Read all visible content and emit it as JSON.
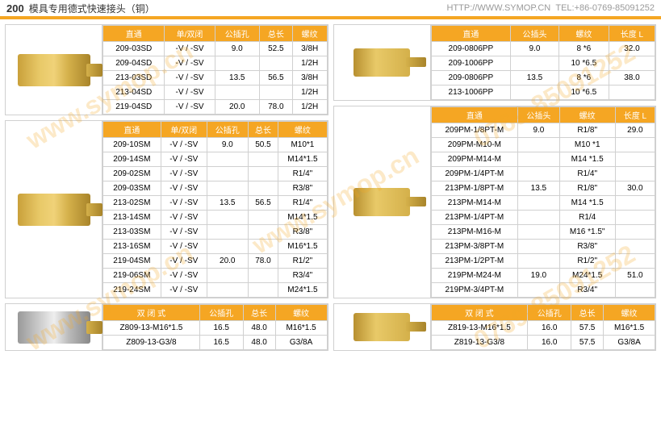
{
  "header": {
    "num": "200",
    "title": "模具专用德式快速接头（铜）",
    "url": "HTTP://WWW.SYMOP.CN",
    "tel": "TEL:+86-0769-85091252"
  },
  "watermark": "www.symop.cn\n0769-85091252",
  "t1": {
    "headers": [
      "直通",
      "单/双闭",
      "公插孔",
      "总长",
      "螺纹"
    ],
    "rows": [
      [
        "209-03SD",
        "-V / -SV",
        "9.0",
        "52.5",
        "3/8H"
      ],
      [
        "209-04SD",
        "-V / -SV",
        "",
        "",
        "1/2H"
      ],
      [
        "213-03SD",
        "-V / -SV",
        "13.5",
        "56.5",
        "3/8H"
      ],
      [
        "213-04SD",
        "-V / -SV",
        "",
        "",
        "1/2H"
      ],
      [
        "219-04SD",
        "-V / -SV",
        "20.0",
        "78.0",
        "1/2H"
      ]
    ]
  },
  "t2": {
    "headers": [
      "直通",
      "单/双闭",
      "公插孔",
      "总长",
      "螺纹"
    ],
    "rows": [
      [
        "209-10SM",
        "-V / -SV",
        "9.0",
        "50.5",
        "M10*1"
      ],
      [
        "209-14SM",
        "-V / -SV",
        "",
        "",
        "M14*1.5"
      ],
      [
        "209-02SM",
        "-V / -SV",
        "",
        "",
        "R1/4\""
      ],
      [
        "209-03SM",
        "-V / -SV",
        "",
        "",
        "R3/8\""
      ],
      [
        "213-02SM",
        "-V / -SV",
        "13.5",
        "56.5",
        "R1/4\""
      ],
      [
        "213-14SM",
        "-V / -SV",
        "",
        "",
        "M14*1.5"
      ],
      [
        "213-03SM",
        "-V / -SV",
        "",
        "",
        "R3/8\""
      ],
      [
        "213-16SM",
        "-V / -SV",
        "",
        "",
        "M16*1.5"
      ],
      [
        "219-04SM",
        "-V / -SV",
        "20.0",
        "78.0",
        "R1/2\""
      ],
      [
        "219-06SM",
        "-V / -SV",
        "",
        "",
        "R3/4\""
      ],
      [
        "219-24SM",
        "-V / -SV",
        "",
        "",
        "M24*1.5"
      ]
    ]
  },
  "t3": {
    "headers": [
      "双 闭 式",
      "公插孔",
      "总长",
      "螺纹"
    ],
    "rows": [
      [
        "Z809-13-M16*1.5",
        "16.5",
        "48.0",
        "M16*1.5"
      ],
      [
        "Z809-13-G3/8",
        "16.5",
        "48.0",
        "G3/8A"
      ]
    ]
  },
  "t4": {
    "headers": [
      "直通",
      "公插头",
      "螺纹",
      "长度 L"
    ],
    "rows": [
      [
        "209-0806PP",
        "9.0",
        "8 *6",
        "32.0"
      ],
      [
        "209-1006PP",
        "",
        "10 *6.5",
        ""
      ],
      [
        "209-0806PP",
        "13.5",
        "8 *6",
        "38.0"
      ],
      [
        "213-1006PP",
        "",
        "10 *6.5",
        ""
      ]
    ]
  },
  "t5": {
    "headers": [
      "直通",
      "公插头",
      "螺纹",
      "长度 L"
    ],
    "rows": [
      [
        "209PM-1/8PT-M",
        "9.0",
        "R1/8\"",
        "29.0"
      ],
      [
        "209PM-M10-M",
        "",
        "M10 *1",
        ""
      ],
      [
        "209PM-M14-M",
        "",
        "M14 *1.5",
        ""
      ],
      [
        "209PM-1/4PT-M",
        "",
        "R1/4\"",
        ""
      ],
      [
        "213PM-1/8PT-M",
        "13.5",
        "R1/8\"",
        "30.0"
      ],
      [
        "213PM-M14-M",
        "",
        "M14 *1.5",
        ""
      ],
      [
        "213PM-1/4PT-M",
        "",
        "R1/4",
        ""
      ],
      [
        "213PM-M16-M",
        "",
        "M16 *1.5\"",
        ""
      ],
      [
        "213PM-3/8PT-M",
        "",
        "R3/8\"",
        ""
      ],
      [
        "213PM-1/2PT-M",
        "",
        "R1/2\"",
        ""
      ],
      [
        "219PM-M24-M",
        "19.0",
        "M24*1.5",
        "51.0"
      ],
      [
        "219PM-3/4PT-M",
        "",
        "R3/4\"",
        ""
      ]
    ]
  },
  "t6": {
    "headers": [
      "双 闭 式",
      "公插孔",
      "总长",
      "螺纹"
    ],
    "rows": [
      [
        "Z819-13-M16*1.5",
        "16.0",
        "57.5",
        "M16*1.5"
      ],
      [
        "Z819-13-G3/8",
        "16.0",
        "57.5",
        "G3/8A"
      ]
    ]
  }
}
